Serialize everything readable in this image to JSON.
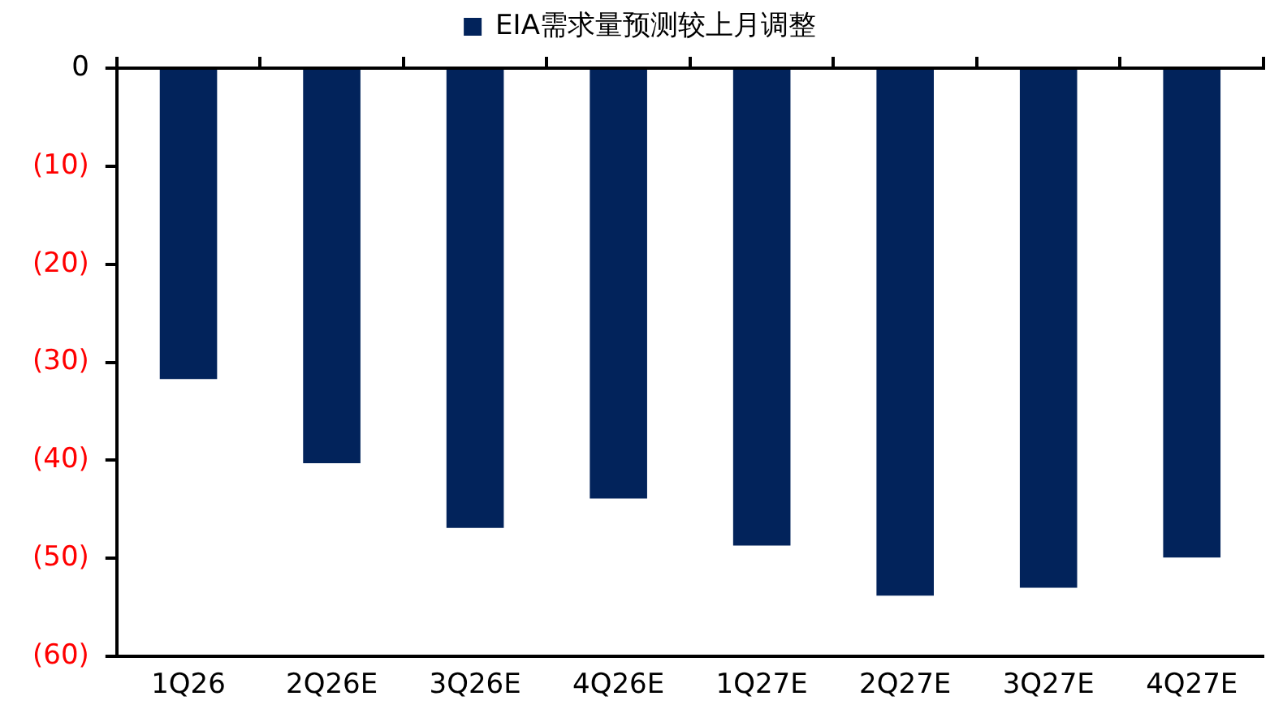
{
  "chart_data": {
    "type": "bar",
    "categories": [
      "1Q26",
      "2Q26E",
      "3Q26E",
      "4Q26E",
      "1Q27E",
      "2Q27E",
      "3Q27E",
      "4Q27E"
    ],
    "series": [
      {
        "name": "EIA需求量预测较上月调整",
        "color": "#02235b",
        "values": [
          -31.7,
          -40.3,
          -46.9,
          -43.9,
          -48.7,
          -53.8,
          -53.0,
          -49.9
        ]
      }
    ],
    "ylim": [
      -60,
      0
    ],
    "yticks": [
      {
        "value": -60,
        "label": "(60)"
      },
      {
        "value": -50,
        "label": "(50)"
      },
      {
        "value": -40,
        "label": "(40)"
      },
      {
        "value": -30,
        "label": "(30)"
      },
      {
        "value": -20,
        "label": "(20)"
      },
      {
        "value": -10,
        "label": "(10)"
      },
      0
    ],
    "grid": false,
    "legend": "top"
  }
}
